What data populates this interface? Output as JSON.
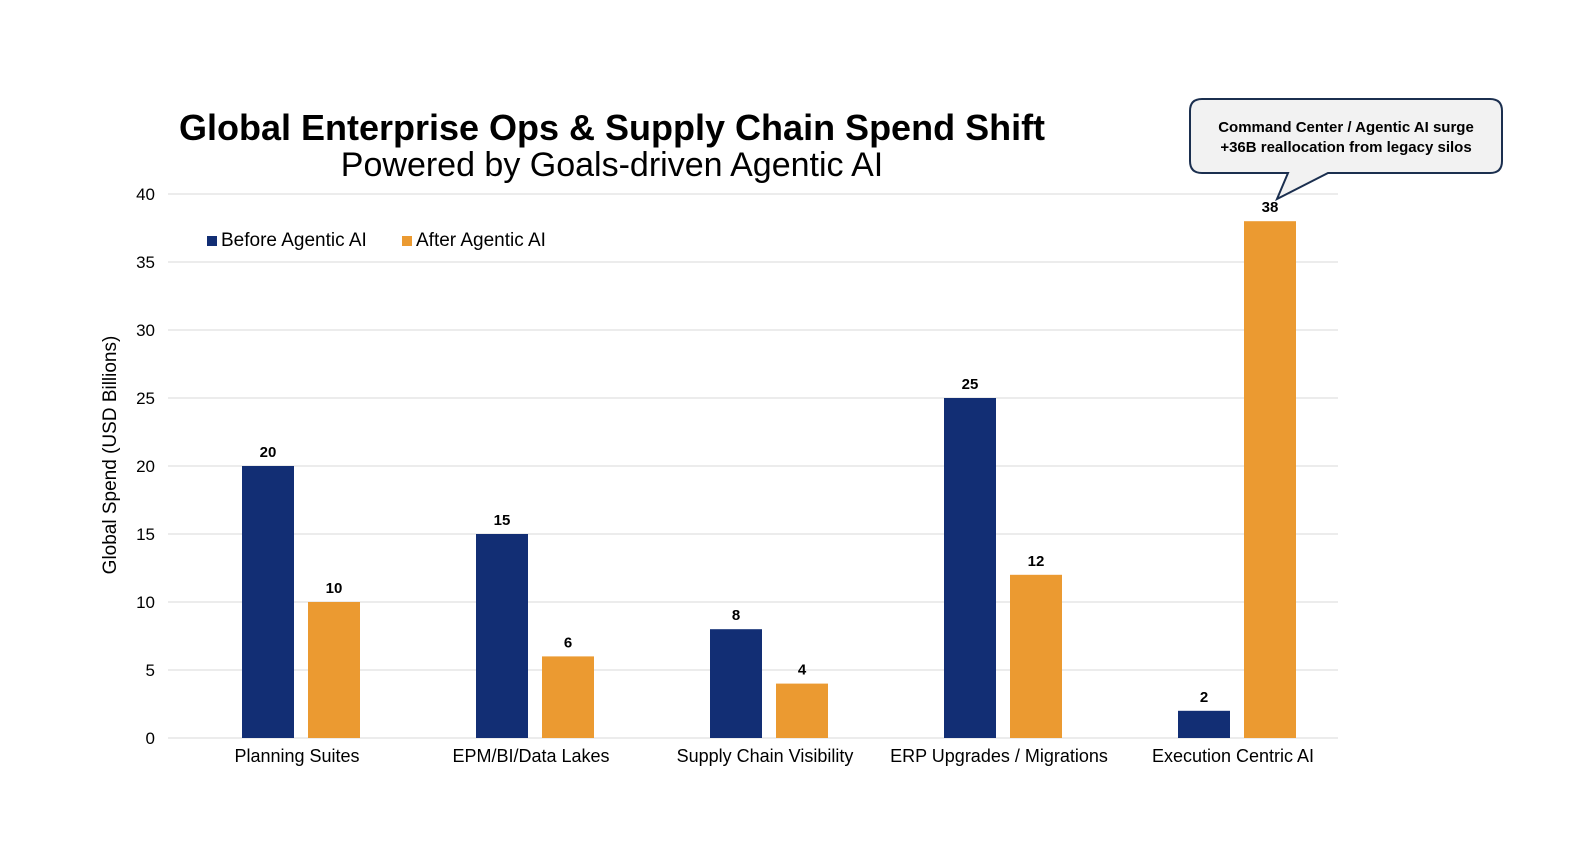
{
  "chart_data": {
    "type": "bar",
    "title": "Global Enterprise Ops & Supply Chain Spend Shift",
    "subtitle": "Powered by Goals-driven Agentic AI",
    "xlabel": "",
    "ylabel": "Global Spend (USD Billions)",
    "ylim": [
      0,
      40
    ],
    "yticks": [
      0,
      5,
      10,
      15,
      20,
      25,
      30,
      35,
      40
    ],
    "grid": true,
    "legend_position": "top-left",
    "categories": [
      "Planning Suites",
      "EPM/BI/Data Lakes",
      "Supply Chain Visibility",
      "ERP Upgrades / Migrations",
      "Execution Centric AI"
    ],
    "series": [
      {
        "name": "Before Agentic AI",
        "color": "#122e74",
        "values": [
          20,
          15,
          8,
          25,
          2
        ]
      },
      {
        "name": "After Agentic AI",
        "color": "#eb9a31",
        "values": [
          10,
          6,
          4,
          12,
          38
        ]
      }
    ],
    "annotation": {
      "line1": "Command Center / Agentic AI surge",
      "line2": "+36B reallocation from legacy silos",
      "category_index": 4
    }
  }
}
